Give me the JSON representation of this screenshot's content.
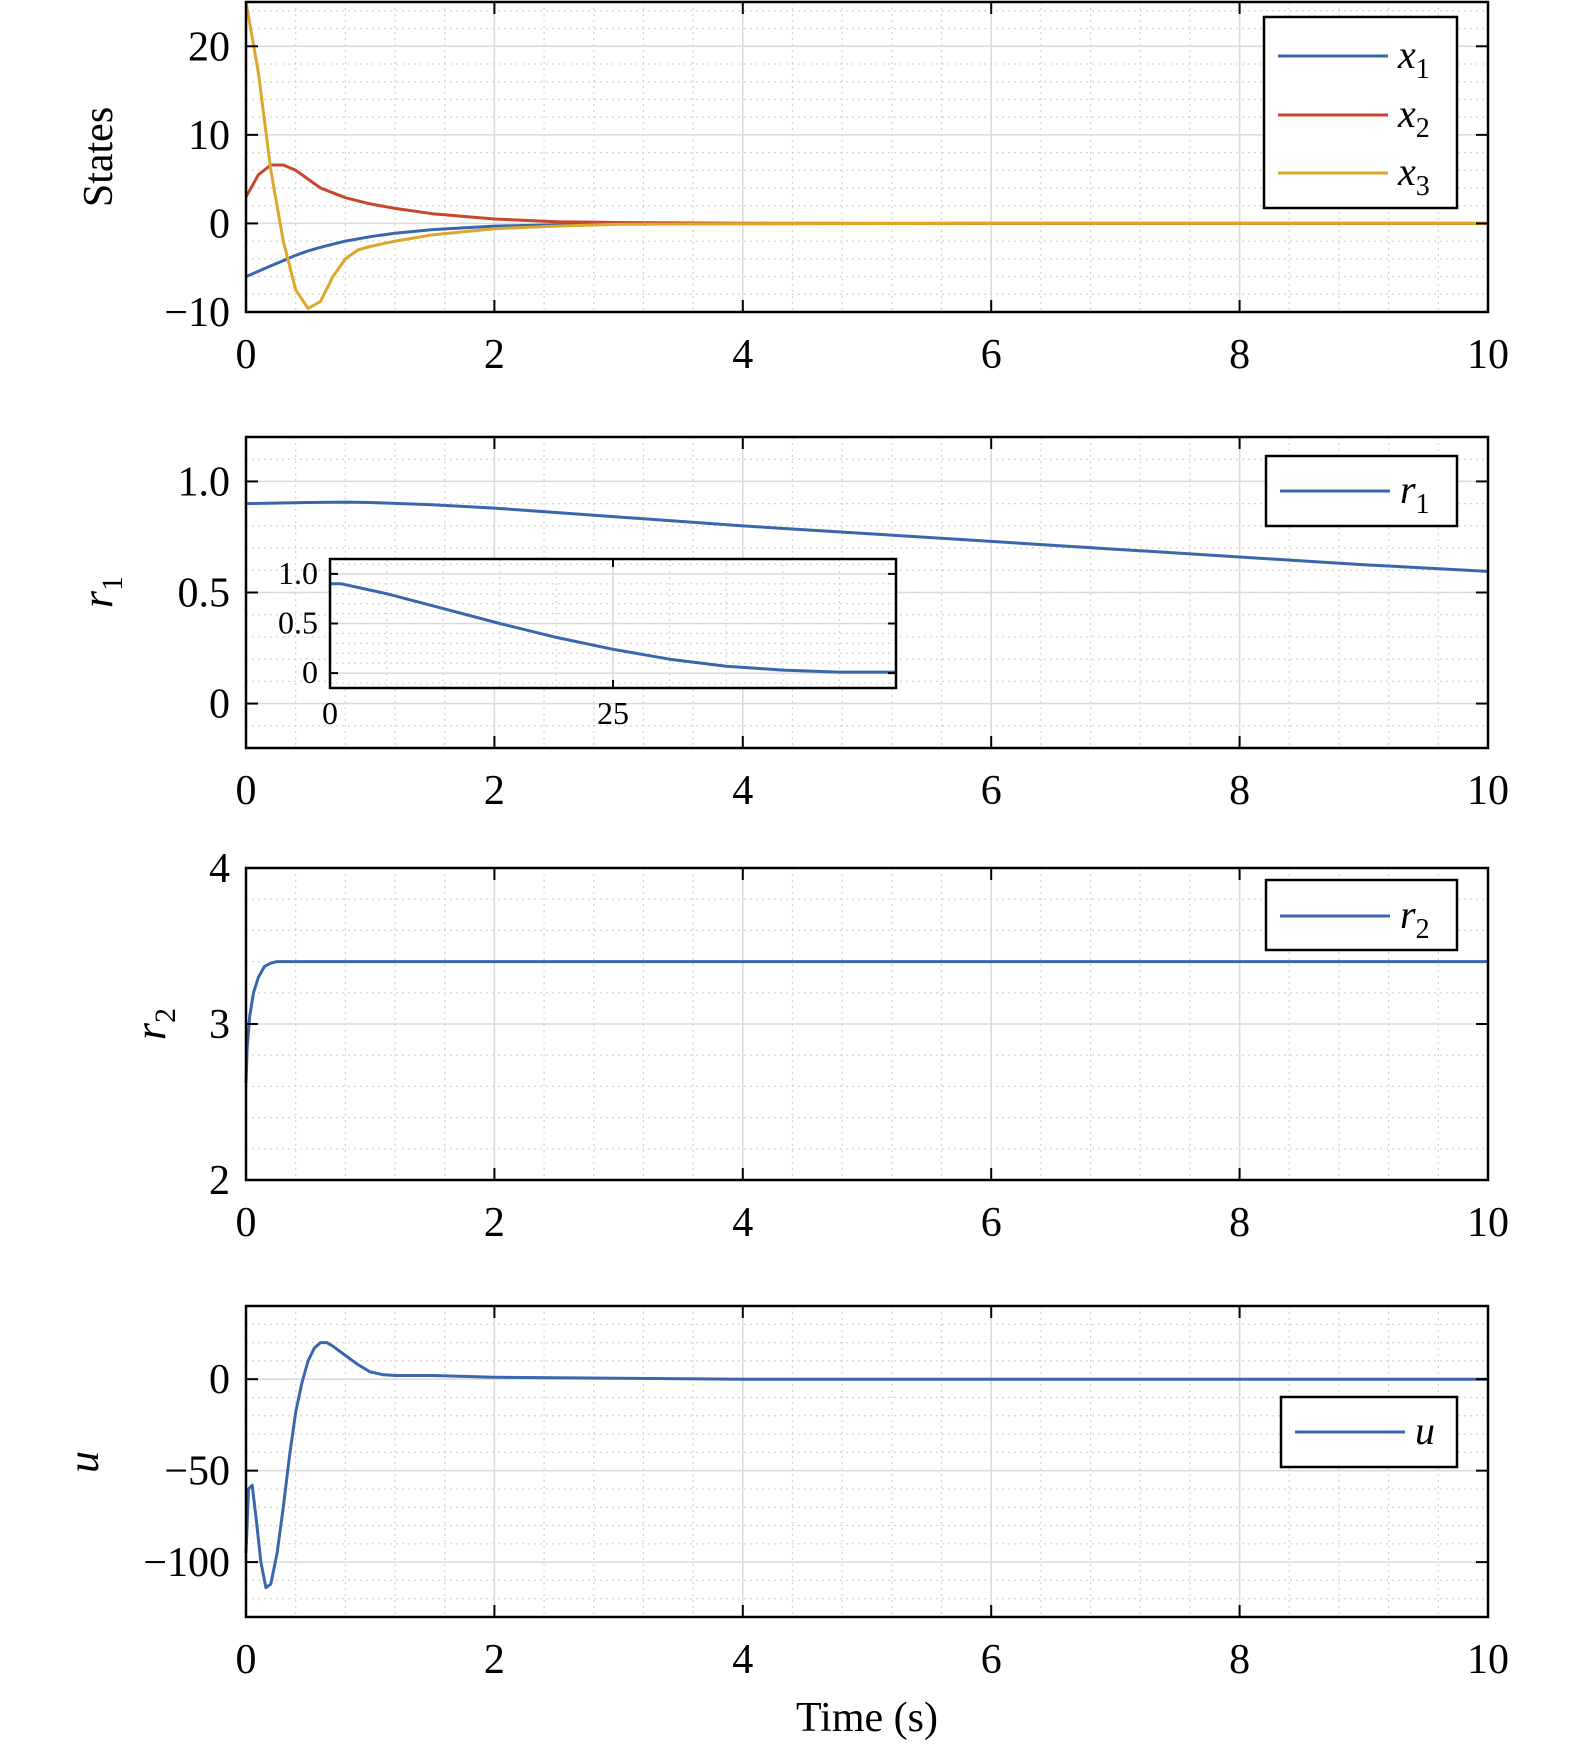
{
  "chart_data": [
    {
      "type": "line",
      "ylabel": "States",
      "xlim": [
        0,
        10
      ],
      "ylim": [
        -10,
        25
      ],
      "xticks": [
        0,
        2,
        4,
        6,
        8,
        10
      ],
      "yticks": [
        -10,
        0,
        10,
        20
      ],
      "xtick_labels": [
        "0",
        "2",
        "4",
        "6",
        "8",
        "10"
      ],
      "ytick_labels": [
        "−10",
        "0",
        "10",
        "20"
      ],
      "grid": true,
      "legend_position": "top-right",
      "series": [
        {
          "name": "x",
          "subscript": "1",
          "color": "#3a67ab",
          "x": [
            0,
            0.1,
            0.2,
            0.3,
            0.4,
            0.5,
            0.6,
            0.8,
            1.0,
            1.2,
            1.5,
            2.0,
            2.5,
            3.0,
            4.0,
            6.0,
            8.0,
            10.0
          ],
          "y": [
            -6,
            -5.4,
            -4.8,
            -4.2,
            -3.6,
            -3.1,
            -2.7,
            -2.0,
            -1.5,
            -1.1,
            -0.7,
            -0.3,
            -0.15,
            -0.07,
            -0.02,
            0,
            0,
            0
          ]
        },
        {
          "name": "x",
          "subscript": "2",
          "color": "#c8472a",
          "x": [
            0,
            0.1,
            0.2,
            0.3,
            0.4,
            0.5,
            0.6,
            0.8,
            1.0,
            1.2,
            1.5,
            2.0,
            2.5,
            3.0,
            4.0,
            6.0,
            8.0,
            10.0
          ],
          "y": [
            3,
            5.5,
            6.6,
            6.6,
            6.0,
            5.0,
            4.0,
            2.9,
            2.2,
            1.7,
            1.1,
            0.5,
            0.2,
            0.1,
            0.02,
            0,
            0,
            0
          ]
        },
        {
          "name": "x",
          "subscript": "3",
          "color": "#dca72c",
          "x": [
            0,
            0.1,
            0.2,
            0.3,
            0.4,
            0.5,
            0.6,
            0.7,
            0.8,
            0.9,
            1.0,
            1.2,
            1.5,
            2.0,
            2.5,
            3.0,
            4.0,
            6.0,
            8.0,
            10.0
          ],
          "y": [
            25,
            17,
            6,
            -2,
            -7.5,
            -9.6,
            -8.8,
            -6.0,
            -4.0,
            -3.0,
            -2.6,
            -2.0,
            -1.3,
            -0.6,
            -0.3,
            -0.1,
            -0.03,
            0,
            0,
            0
          ]
        }
      ]
    },
    {
      "type": "line",
      "ylabel": "r",
      "ylabel_subscript": "1",
      "xlim": [
        0,
        10
      ],
      "ylim": [
        -0.2,
        1.2
      ],
      "xticks": [
        0,
        2,
        4,
        6,
        8,
        10
      ],
      "yticks": [
        0,
        0.5,
        1.0
      ],
      "xtick_labels": [
        "0",
        "2",
        "4",
        "6",
        "8",
        "10"
      ],
      "ytick_labels": [
        "0",
        "0.5",
        "1.0"
      ],
      "grid": true,
      "legend_position": "top-right",
      "series": [
        {
          "name": "r",
          "subscript": "1",
          "color": "#3a67ab",
          "x": [
            0,
            0.5,
            0.8,
            1.0,
            1.5,
            2,
            3,
            4,
            5,
            6,
            7,
            8,
            9,
            10
          ],
          "y": [
            0.9,
            0.905,
            0.907,
            0.905,
            0.895,
            0.88,
            0.84,
            0.8,
            0.765,
            0.73,
            0.695,
            0.66,
            0.625,
            0.595
          ]
        }
      ],
      "inset": {
        "xlim": [
          0,
          50
        ],
        "ylim": [
          -0.15,
          1.15
        ],
        "xticks": [
          0,
          25
        ],
        "yticks": [
          0,
          0.5,
          1.0
        ],
        "xtick_labels": [
          "0",
          "25"
        ],
        "ytick_labels": [
          "0",
          "0.5",
          "1.0"
        ],
        "series": [
          {
            "color": "#3a67ab",
            "x": [
              0,
              1,
              5,
              10,
              15,
              20,
              25,
              30,
              35,
              40,
              45,
              50
            ],
            "y": [
              0.9,
              0.9,
              0.8,
              0.65,
              0.5,
              0.36,
              0.24,
              0.14,
              0.07,
              0.03,
              0.01,
              0.01
            ]
          }
        ]
      }
    },
    {
      "type": "line",
      "ylabel": "r",
      "ylabel_subscript": "2",
      "xlim": [
        0,
        10
      ],
      "ylim": [
        2,
        4
      ],
      "xticks": [
        0,
        2,
        4,
        6,
        8,
        10
      ],
      "yticks": [
        2,
        3,
        4
      ],
      "xtick_labels": [
        "0",
        "2",
        "4",
        "6",
        "8",
        "10"
      ],
      "ytick_labels": [
        "2",
        "3",
        "4"
      ],
      "grid": true,
      "legend_position": "top-right",
      "series": [
        {
          "name": "r",
          "subscript": "2",
          "color": "#3a67ab",
          "x": [
            0,
            0.01,
            0.03,
            0.06,
            0.1,
            0.15,
            0.2,
            0.25,
            0.4,
            1,
            10
          ],
          "y": [
            2.62,
            2.85,
            3.05,
            3.2,
            3.3,
            3.37,
            3.39,
            3.4,
            3.4,
            3.4,
            3.4
          ]
        }
      ]
    },
    {
      "type": "line",
      "ylabel": "u",
      "xlabel": "Time (s)",
      "xlim": [
        0,
        10
      ],
      "ylim": [
        -130,
        40
      ],
      "xticks": [
        0,
        2,
        4,
        6,
        8,
        10
      ],
      "yticks": [
        -100,
        -50,
        0
      ],
      "xtick_labels": [
        "0",
        "2",
        "4",
        "6",
        "8",
        "10"
      ],
      "ytick_labels": [
        "−100",
        "−50",
        "0"
      ],
      "grid": true,
      "legend_position": "center-right",
      "series": [
        {
          "name": "u",
          "color": "#3a67ab",
          "x": [
            0,
            0.02,
            0.05,
            0.08,
            0.12,
            0.16,
            0.2,
            0.25,
            0.3,
            0.35,
            0.4,
            0.45,
            0.5,
            0.55,
            0.6,
            0.65,
            0.7,
            0.8,
            0.9,
            1.0,
            1.1,
            1.2,
            1.5,
            2,
            3,
            4,
            6,
            10
          ],
          "y": [
            -95,
            -60,
            -58,
            -75,
            -100,
            -114,
            -112,
            -95,
            -70,
            -42,
            -18,
            -2,
            10,
            17,
            20,
            20,
            18,
            13,
            8,
            4,
            2.5,
            2,
            2,
            1,
            0.5,
            0,
            0,
            0
          ]
        }
      ]
    }
  ]
}
